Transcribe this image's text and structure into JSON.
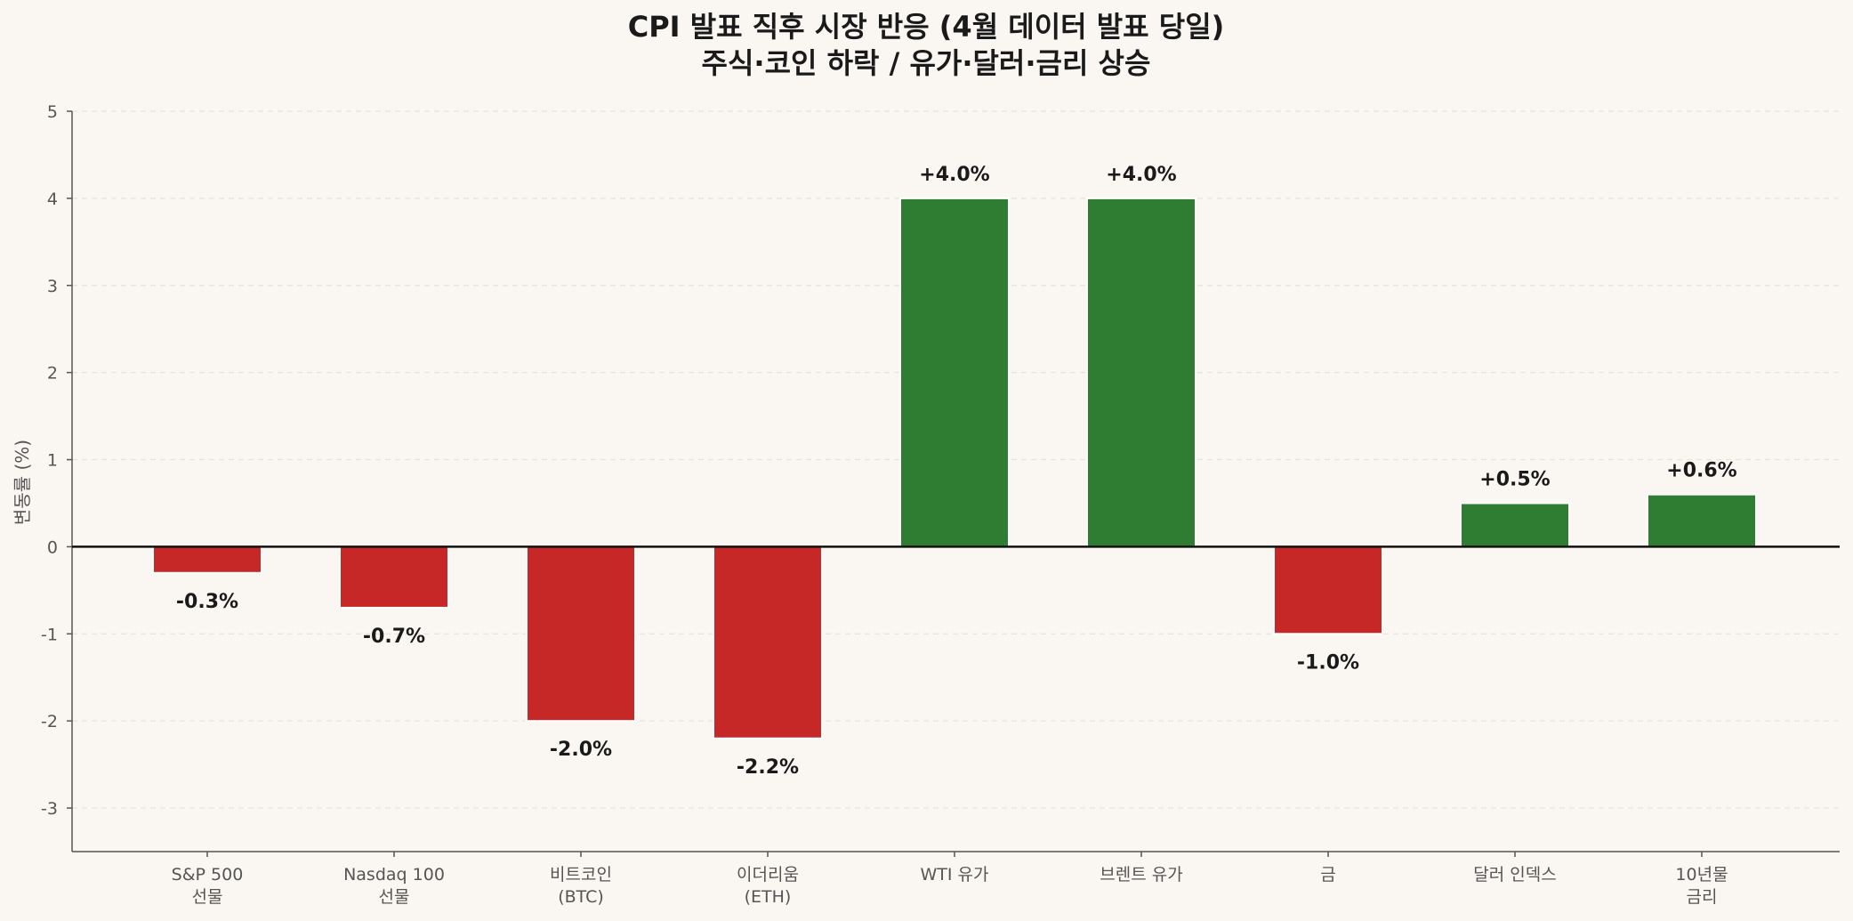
{
  "chart_data": {
    "type": "bar",
    "title_lines": [
      "CPI 발표 직후 시장 반응 (4월 데이터 발표 당일)",
      "주식·코인 하락 / 유가·달러·금리 상승"
    ],
    "xlabel": "",
    "ylabel": "변동률 (%)",
    "ylim": [
      -3.5,
      5
    ],
    "yticks": [
      -3,
      -2,
      -1,
      0,
      1,
      2,
      3,
      4,
      5
    ],
    "grid": true,
    "categories": [
      [
        "S&P 500",
        "선물"
      ],
      [
        "Nasdaq 100",
        "선물"
      ],
      [
        "비트코인",
        "(BTC)"
      ],
      [
        "이더리움",
        "(ETH)"
      ],
      [
        "WTI 유가"
      ],
      [
        "브렌트 유가"
      ],
      [
        "금"
      ],
      [
        "달러 인덱스"
      ],
      [
        "10년물",
        "금리"
      ]
    ],
    "values": [
      -0.3,
      -0.7,
      -2.0,
      -2.2,
      4.0,
      4.0,
      -1.0,
      0.5,
      0.6
    ],
    "value_labels": [
      "-0.3%",
      "-0.7%",
      "-2.0%",
      "-2.2%",
      "+4.0%",
      "+4.0%",
      "-1.0%",
      "+0.5%",
      "+0.6%"
    ],
    "colors": {
      "positive": "#2e7d32",
      "negative": "#c62828",
      "background": "#faf7f3",
      "axis": "#555555",
      "zero_line": "#111111",
      "grid": "#e6e2dc"
    }
  }
}
